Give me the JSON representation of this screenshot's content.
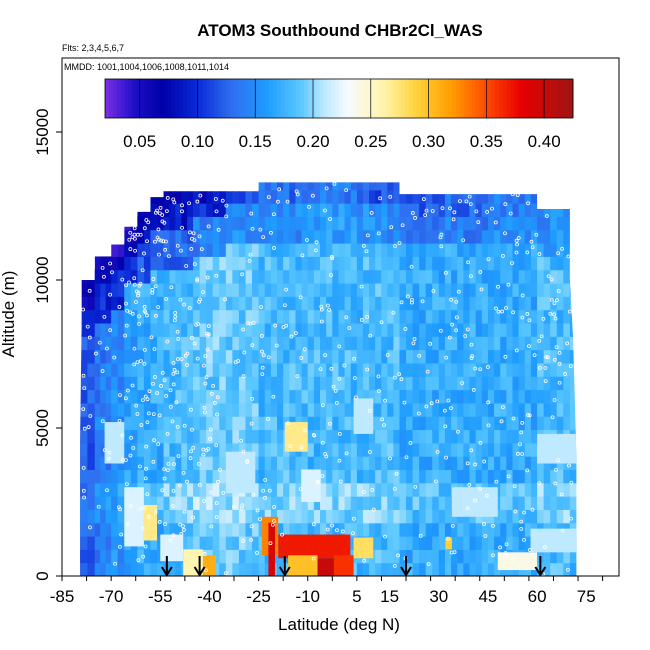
{
  "chart_data": {
    "type": "heatmap",
    "title": "ATOM3 Southbound CHBr2Cl_WAS",
    "subtitle_flights": "Flts: 2,3,4,5,6,7",
    "subtitle_dates": "MMDD: 1001,1004,1006,1008,1011,1014",
    "xlabel": "Latitude (deg N)",
    "ylabel": "Altitude (m)",
    "xlim": [
      -85,
      85
    ],
    "ylim": [
      0,
      17500
    ],
    "x_tick_labels": [
      "-85",
      "-70",
      "-55",
      "-40",
      "-25",
      "-10",
      "5",
      "15",
      "30",
      "45",
      "60",
      "75"
    ],
    "x_tick_values": [
      -85,
      -70,
      -55,
      -40,
      -25,
      -10,
      5,
      15,
      30,
      45,
      60,
      75
    ],
    "y_tick_labels": [
      "0",
      "5000",
      "10000",
      "15000"
    ],
    "y_tick_values": [
      0,
      5000,
      10000,
      15000
    ],
    "colorbar": {
      "range": [
        0.02,
        0.425
      ],
      "tick_labels": [
        "0.05",
        "0.10",
        "0.15",
        "0.20",
        "0.25",
        "0.30",
        "0.35",
        "0.40"
      ],
      "tick_values": [
        0.05,
        0.1,
        0.15,
        0.2,
        0.25,
        0.3,
        0.35,
        0.4
      ],
      "color_stops": [
        [
          0.02,
          "#7b2ee6"
        ],
        [
          0.045,
          "#1f10c8"
        ],
        [
          0.07,
          "#0000a8"
        ],
        [
          0.1,
          "#0a2ad8"
        ],
        [
          0.13,
          "#2f6ff0"
        ],
        [
          0.16,
          "#1e9cff"
        ],
        [
          0.19,
          "#5cc8ff"
        ],
        [
          0.21,
          "#bfe9ff"
        ],
        [
          0.23,
          "#f6fbff"
        ],
        [
          0.26,
          "#fff5b0"
        ],
        [
          0.29,
          "#ffd23a"
        ],
        [
          0.32,
          "#ff9d00"
        ],
        [
          0.35,
          "#ff4a00"
        ],
        [
          0.38,
          "#e80000"
        ],
        [
          0.425,
          "#9e1515"
        ]
      ]
    },
    "boundary": {
      "left": [
        [
          -79.5,
          0
        ],
        [
          -79.5,
          4500
        ],
        [
          -79,
          8500
        ],
        [
          -79,
          10000
        ],
        [
          -75,
          10000
        ],
        [
          -75,
          10800
        ],
        [
          -70,
          10800
        ],
        [
          -70,
          11200
        ],
        [
          -66,
          11200
        ],
        [
          -66,
          11800
        ],
        [
          -62,
          11800
        ],
        [
          -62,
          12300
        ],
        [
          -58,
          12300
        ],
        [
          -58,
          12800
        ],
        [
          -54,
          12800
        ],
        [
          -54,
          13000
        ],
        [
          -25,
          13000
        ],
        [
          -25,
          13300
        ],
        [
          18,
          13300
        ],
        [
          18,
          12900
        ],
        [
          60,
          12900
        ],
        [
          60,
          12400
        ],
        [
          70,
          12400
        ],
        [
          70,
          10000
        ],
        [
          71,
          8000
        ],
        [
          72,
          4000
        ],
        [
          72,
          0
        ]
      ]
    },
    "columns": [
      {
        "x": [
          -79.5,
          -75
        ],
        "top": 10000,
        "base": 0.12,
        "upper": [
          [
            8000,
            0.085
          ],
          [
            9000,
            0.065
          ],
          [
            9500,
            0.05
          ]
        ]
      },
      {
        "x": [
          -75,
          -70
        ],
        "top": 10800,
        "base": 0.14,
        "upper": [
          [
            8500,
            0.1
          ],
          [
            9500,
            0.07
          ],
          [
            10300,
            0.05
          ]
        ]
      },
      {
        "x": [
          -70,
          -66
        ],
        "top": 11200,
        "base": 0.15,
        "upper": [
          [
            9000,
            0.1
          ],
          [
            10200,
            0.06
          ],
          [
            10800,
            0.045
          ]
        ]
      },
      {
        "x": [
          -66,
          -62
        ],
        "top": 11800,
        "base": 0.16,
        "upper": [
          [
            9500,
            0.11
          ],
          [
            10500,
            0.07
          ],
          [
            11300,
            0.05
          ]
        ]
      },
      {
        "x": [
          -62,
          -58
        ],
        "top": 12300,
        "base": 0.17,
        "upper": [
          [
            9800,
            0.12
          ],
          [
            11000,
            0.08
          ],
          [
            12000,
            0.06
          ]
        ]
      },
      {
        "x": [
          -58,
          -54
        ],
        "top": 12800,
        "base": 0.17,
        "upper": [
          [
            10000,
            0.12
          ],
          [
            11500,
            0.08
          ],
          [
            12300,
            0.065
          ]
        ]
      },
      {
        "x": [
          -54,
          -45
        ],
        "top": 13000,
        "base": 0.18,
        "upper": [
          [
            10000,
            0.13
          ],
          [
            11500,
            0.09
          ],
          [
            12400,
            0.07
          ]
        ]
      },
      {
        "x": [
          -45,
          -35
        ],
        "top": 13000,
        "base": 0.19,
        "upper": [
          [
            10500,
            0.14
          ],
          [
            11800,
            0.1
          ],
          [
            12500,
            0.08
          ]
        ]
      },
      {
        "x": [
          -35,
          -25
        ],
        "top": 13000,
        "base": 0.19,
        "upper": [
          [
            11000,
            0.15
          ],
          [
            12200,
            0.11
          ]
        ]
      },
      {
        "x": [
          -25,
          -10
        ],
        "top": 13300,
        "base": 0.18,
        "upper": [
          [
            11000,
            0.15
          ],
          [
            12500,
            0.13
          ]
        ]
      },
      {
        "x": [
          -10,
          5
        ],
        "top": 13300,
        "base": 0.18,
        "upper": [
          [
            11000,
            0.16
          ],
          [
            12500,
            0.14
          ]
        ]
      },
      {
        "x": [
          5,
          18
        ],
        "top": 13300,
        "base": 0.18,
        "upper": [
          [
            11000,
            0.15
          ],
          [
            12500,
            0.12
          ]
        ]
      },
      {
        "x": [
          18,
          30
        ],
        "top": 12900,
        "base": 0.17,
        "upper": [
          [
            11000,
            0.14
          ],
          [
            12000,
            0.12
          ]
        ]
      },
      {
        "x": [
          30,
          45
        ],
        "top": 12900,
        "base": 0.17,
        "upper": [
          [
            11000,
            0.14
          ],
          [
            12000,
            0.13
          ]
        ]
      },
      {
        "x": [
          45,
          60
        ],
        "top": 12900,
        "base": 0.17,
        "upper": [
          [
            11000,
            0.15
          ],
          [
            12000,
            0.14
          ]
        ]
      },
      {
        "x": [
          60,
          72
        ],
        "top": 12400,
        "base": 0.18,
        "upper": [
          [
            10500,
            0.16
          ],
          [
            11500,
            0.15
          ]
        ]
      }
    ],
    "patches": [
      {
        "lat": [
          -72,
          -66
        ],
        "alt": [
          3800,
          5200
        ],
        "value": 0.21
      },
      {
        "lat": [
          -66,
          -60
        ],
        "alt": [
          1000,
          3000
        ],
        "value": 0.22
      },
      {
        "lat": [
          -60,
          -56
        ],
        "alt": [
          1200,
          2400
        ],
        "value": 0.27
      },
      {
        "lat": [
          -55,
          -48
        ],
        "alt": [
          500,
          1400
        ],
        "value": 0.22
      },
      {
        "lat": [
          -48,
          -42
        ],
        "alt": [
          0,
          900
        ],
        "value": 0.26
      },
      {
        "lat": [
          -42,
          -38
        ],
        "alt": [
          0,
          700
        ],
        "value": 0.31
      },
      {
        "lat": [
          -35,
          -26
        ],
        "alt": [
          2800,
          4200
        ],
        "value": 0.21
      },
      {
        "lat": [
          -24,
          -19
        ],
        "alt": [
          700,
          2000
        ],
        "value": 0.33
      },
      {
        "lat": [
          -22,
          -20
        ],
        "alt": [
          0,
          1800
        ],
        "value": 0.39
      },
      {
        "lat": [
          -19,
          3
        ],
        "alt": [
          600,
          1400
        ],
        "value": 0.37
      },
      {
        "lat": [
          -16,
          -7
        ],
        "alt": [
          0,
          700
        ],
        "value": 0.3
      },
      {
        "lat": [
          -7,
          -2
        ],
        "alt": [
          0,
          600
        ],
        "value": 0.4
      },
      {
        "lat": [
          -2,
          4
        ],
        "alt": [
          0,
          700
        ],
        "value": 0.36
      },
      {
        "lat": [
          4,
          10
        ],
        "alt": [
          600,
          1300
        ],
        "value": 0.28
      },
      {
        "lat": [
          -17,
          -10
        ],
        "alt": [
          4200,
          5200
        ],
        "value": 0.27
      },
      {
        "lat": [
          -12,
          -6
        ],
        "alt": [
          2500,
          3600
        ],
        "value": 0.22
      },
      {
        "lat": [
          4,
          10
        ],
        "alt": [
          4800,
          6000
        ],
        "value": 0.21
      },
      {
        "lat": [
          32,
          34
        ],
        "alt": [
          900,
          1300
        ],
        "value": 0.29
      },
      {
        "lat": [
          34,
          48
        ],
        "alt": [
          2000,
          3000
        ],
        "value": 0.21
      },
      {
        "lat": [
          48,
          60
        ],
        "alt": [
          200,
          800
        ],
        "value": 0.24
      },
      {
        "lat": [
          58,
          72
        ],
        "alt": [
          800,
          1600
        ],
        "value": 0.21
      },
      {
        "lat": [
          60,
          72
        ],
        "alt": [
          3800,
          4800
        ],
        "value": 0.21
      }
    ],
    "arrows_lat": [
      -53,
      -43,
      -17,
      20,
      61
    ]
  }
}
